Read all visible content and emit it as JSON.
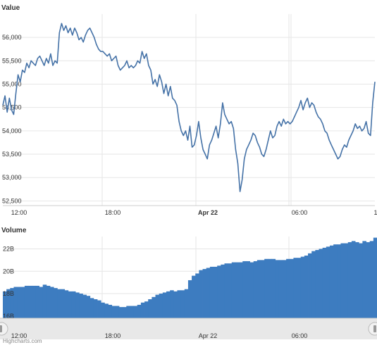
{
  "chart_data": [
    {
      "type": "line",
      "title": "Value",
      "ylim": [
        52400,
        56500
      ],
      "yticks": [
        52500,
        53000,
        53500,
        54000,
        54500,
        55000,
        55500,
        56000
      ],
      "ytick_labels": [
        "52,500",
        "53,000",
        "53,500",
        "54,000",
        "54,500",
        "55,000",
        "55,500",
        "56,000"
      ],
      "xticks": [
        {
          "label": "12:00",
          "bold": false
        },
        {
          "label": "18:00",
          "bold": false
        },
        {
          "label": "Apr 22",
          "bold": true
        },
        {
          "label": "06:00",
          "bold": false
        },
        {
          "label": "1",
          "bold": false
        }
      ],
      "grid": true,
      "line_color": "#4572a7",
      "values": [
        54550,
        54750,
        54400,
        54700,
        54450,
        54350,
        54800,
        55200,
        55050,
        55300,
        55250,
        55450,
        55350,
        55500,
        55450,
        55400,
        55550,
        55600,
        55500,
        55400,
        55550,
        55450,
        55650,
        55400,
        55500,
        55450,
        56100,
        56300,
        56150,
        56250,
        56100,
        56200,
        56050,
        56200,
        56100,
        55950,
        56000,
        55900,
        56050,
        56150,
        56200,
        56100,
        56000,
        55850,
        55750,
        55700,
        55700,
        55650,
        55600,
        55650,
        55500,
        55550,
        55600,
        55400,
        55300,
        55350,
        55400,
        55500,
        55350,
        55400,
        55350,
        55400,
        55500,
        55450,
        55700,
        55550,
        55650,
        55400,
        55300,
        55000,
        55100,
        54950,
        55200,
        55050,
        54800,
        55000,
        54750,
        54950,
        54700,
        54650,
        54550,
        54200,
        54000,
        53900,
        54000,
        53800,
        54100,
        53650,
        53700,
        53900,
        54200,
        53850,
        53600,
        53500,
        53400,
        53700,
        53800,
        53950,
        54100,
        53850,
        54150,
        54600,
        54350,
        54250,
        54150,
        54200,
        54050,
        53600,
        53300,
        52700,
        52950,
        53400,
        53600,
        53700,
        53800,
        53950,
        53900,
        53750,
        53650,
        53500,
        53450,
        53600,
        53800,
        54000,
        53850,
        53900,
        54100,
        54200,
        54100,
        54250,
        54150,
        54200,
        54150,
        54200,
        54300,
        54400,
        54500,
        54650,
        54450,
        54600,
        54700,
        54500,
        54600,
        54550,
        54400,
        54300,
        54250,
        54150,
        54000,
        53950,
        53800,
        53700,
        53600,
        53500,
        53400,
        53450,
        53600,
        53700,
        53650,
        53800,
        53900,
        54000,
        54150,
        54050,
        54100,
        54000,
        54050,
        54200,
        53950,
        53900,
        54600,
        55050
      ]
    },
    {
      "type": "area",
      "title": "Volume",
      "ylim": [
        15.8,
        23.1
      ],
      "yticks": [
        16,
        18,
        20,
        22
      ],
      "ytick_labels": [
        "16B",
        "18B",
        "20B",
        "22B"
      ],
      "xticks": [
        {
          "label": "12:00",
          "bold": false
        },
        {
          "label": "18:00",
          "bold": false
        },
        {
          "label": "Apr 22",
          "bold": false
        },
        {
          "label": "06:00",
          "bold": false
        }
      ],
      "grid": true,
      "fill_color": "#3d7cc0",
      "values": [
        18.2,
        18.4,
        18.5,
        18.6,
        18.6,
        18.6,
        18.7,
        18.7,
        18.7,
        18.7,
        18.6,
        18.8,
        18.7,
        18.6,
        18.5,
        18.4,
        18.4,
        18.3,
        18.2,
        18.2,
        18.1,
        18.0,
        17.9,
        17.8,
        17.6,
        17.5,
        17.4,
        17.2,
        17.1,
        17.0,
        16.9,
        16.9,
        16.8,
        16.8,
        16.9,
        16.9,
        16.9,
        17.0,
        17.2,
        17.3,
        17.5,
        17.7,
        17.9,
        18.0,
        18.1,
        18.2,
        18.3,
        18.2,
        18.3,
        18.3,
        18.4,
        19.2,
        19.6,
        19.8,
        20.1,
        20.2,
        20.3,
        20.4,
        20.4,
        20.5,
        20.6,
        20.7,
        20.7,
        20.8,
        20.8,
        20.8,
        20.9,
        20.9,
        20.8,
        20.9,
        21.0,
        21.0,
        21.1,
        21.1,
        21.1,
        21.0,
        21.0,
        21.0,
        21.1,
        21.1,
        21.2,
        21.2,
        21.3,
        21.4,
        21.6,
        21.8,
        21.9,
        22.0,
        22.1,
        22.2,
        22.3,
        22.4,
        22.4,
        22.5,
        22.5,
        22.6,
        22.7,
        22.6,
        22.5,
        22.7,
        22.6,
        22.7,
        23.0
      ]
    }
  ],
  "footer": {
    "text": "Highcharts.com"
  },
  "colors": {
    "grid": "#e6e6e6",
    "navigator_band": "#e8e8e8",
    "handle": "#f2f2f2"
  }
}
